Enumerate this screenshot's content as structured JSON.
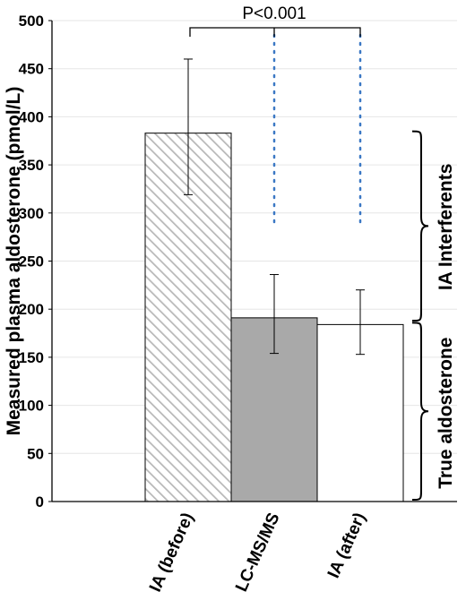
{
  "chart_data": {
    "type": "bar",
    "categories": [
      "IA (before)",
      "LC-MS/MS",
      "IA (after)"
    ],
    "values": [
      383,
      191,
      184
    ],
    "error_high": [
      460,
      236,
      220
    ],
    "error_low": [
      319,
      154,
      153
    ],
    "ylabel": "Measured plasma aldosterone (pmol/L)",
    "ylim": [
      0,
      500
    ],
    "yticks": [
      "0",
      "50",
      "100",
      "150",
      "200",
      "250",
      "300",
      "350",
      "400",
      "450",
      "500"
    ],
    "grid": true,
    "significance": "P<0.001",
    "bracket_labels": {
      "upper": "IA Interferents",
      "lower": "True aldosterone"
    },
    "upper_bracket_range": [
      188,
      383
    ],
    "lower_bracket_range": [
      0,
      184
    ],
    "dotted_line_range": [
      284,
      500
    ],
    "bar_styles": [
      "hatched",
      "#a9a9a9",
      "#ffffff"
    ],
    "dotted_line_color": "#3b78c4"
  }
}
